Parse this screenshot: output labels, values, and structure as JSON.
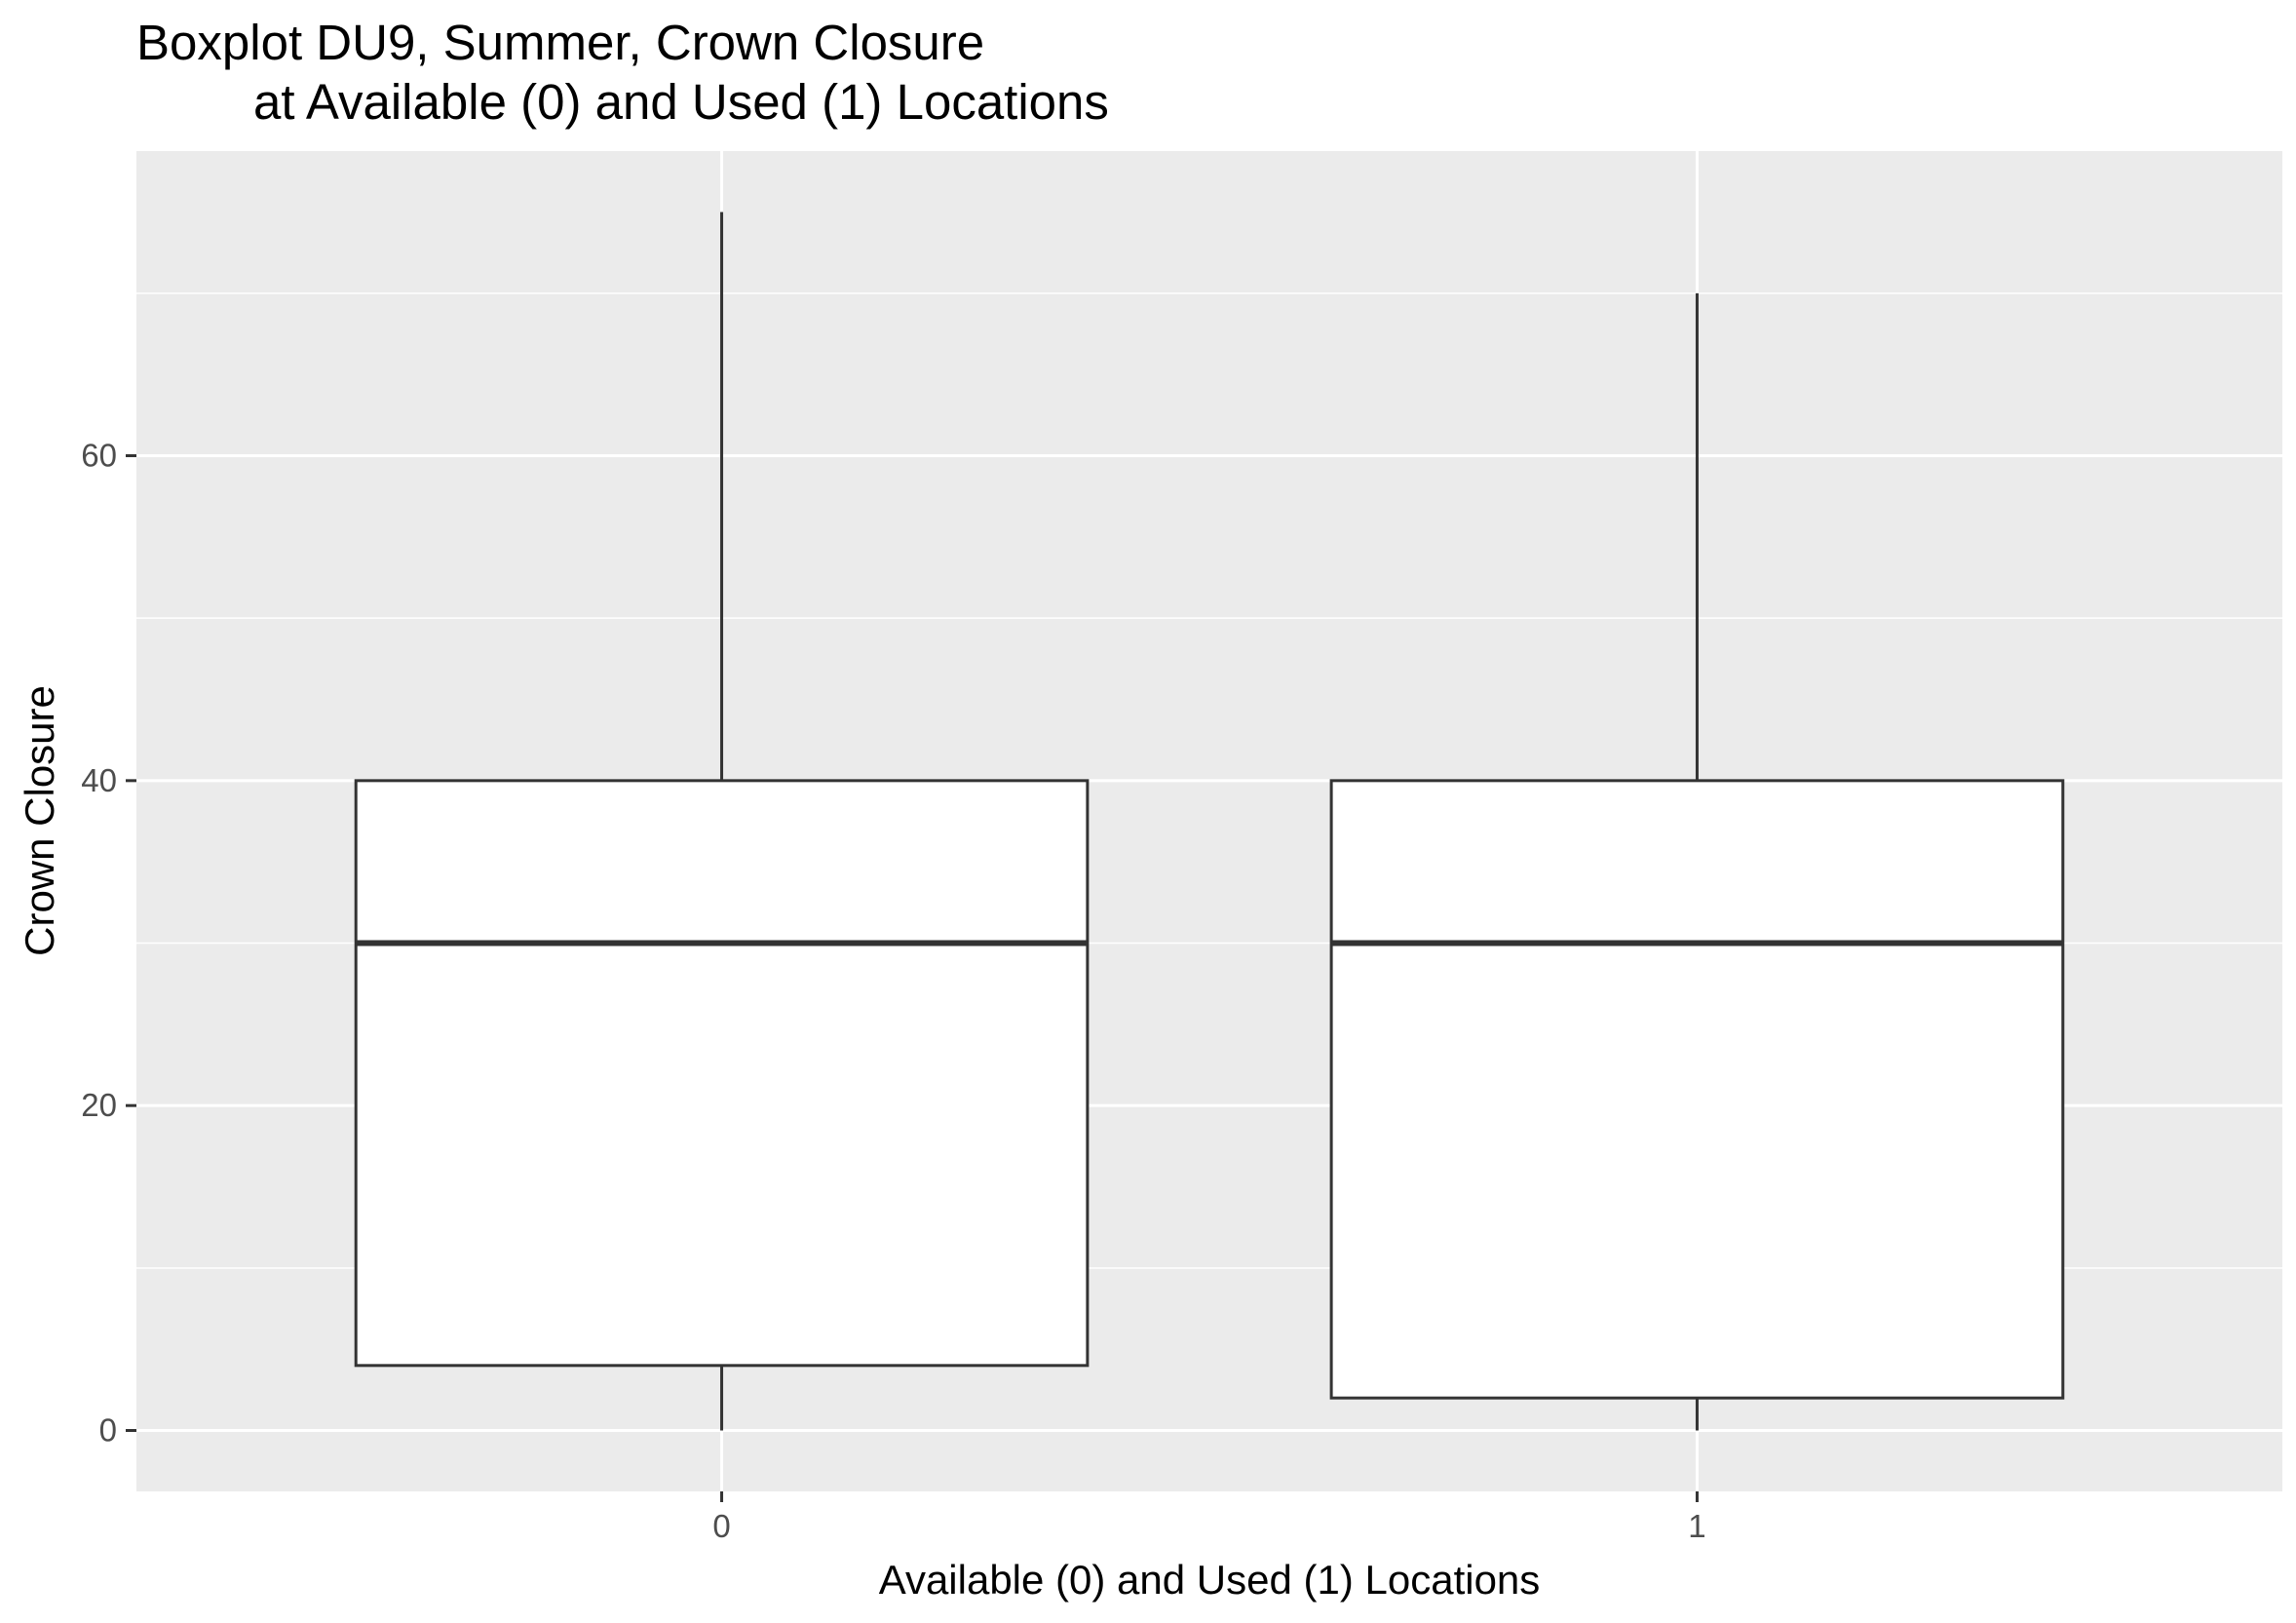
{
  "chart_data": {
    "type": "boxplot",
    "title_lines": [
      "Boxplot DU9, Summer, Crown Closure",
      "at Available (0) and Used (1) Locations"
    ],
    "xlabel": "Available (0) and Used (1) Locations",
    "ylabel": "Crown Closure",
    "categories": [
      "0",
      "1"
    ],
    "boxes": [
      {
        "category": "0",
        "min": 0,
        "q1": 4,
        "median": 30,
        "q3": 40,
        "max": 75
      },
      {
        "category": "1",
        "min": 0,
        "q1": 2,
        "median": 30,
        "q3": 40,
        "max": 70
      }
    ],
    "ylim": [
      -3.75,
      78.75
    ],
    "y_ticks": [
      0,
      20,
      40,
      60
    ],
    "y_tick_labels": [
      "0",
      "20",
      "40",
      "60"
    ],
    "y_minor": [
      10,
      30,
      50,
      70
    ],
    "grid": true,
    "colors": {
      "panel_background": "#ebebeb",
      "grid_line": "#ffffff",
      "box_fill": "#ffffff",
      "box_stroke": "#333333",
      "tick_color": "#333333"
    }
  }
}
